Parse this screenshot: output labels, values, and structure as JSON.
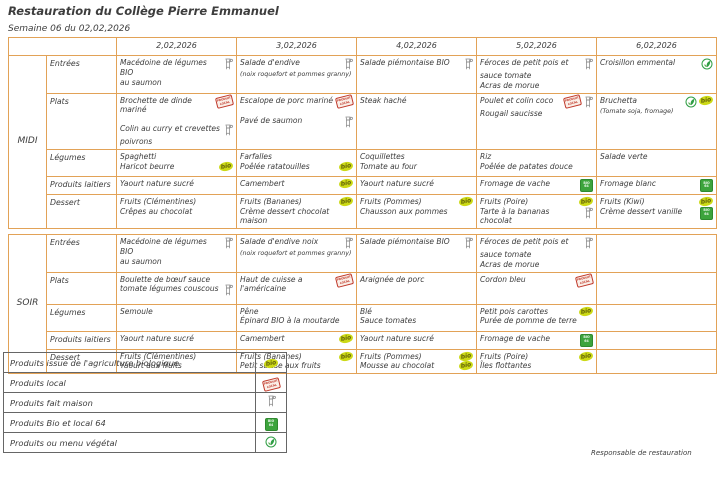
{
  "title": "Restauration du Collège Pierre Emmanuel",
  "subtitle": "Semaine 06 du 02,02,2026",
  "footer": "Responsable de restauration",
  "colors": {
    "table_border": "#e2a257",
    "bio_badge": "#ccd916",
    "local_stamp": "#c0392b",
    "bio_local_64": "#3da43d",
    "vegetal": "#2f9e44"
  },
  "icon_labels": {
    "bio": "bio",
    "local_line1": "PRODUIT",
    "local_line2": "LOCAL",
    "b64_line1": "BIO",
    "b64_line2": "64"
  },
  "columns": [
    "2,02,2026",
    "3,02,2026",
    "4,02,2026",
    "5,02,2026",
    "6,02,2026"
  ],
  "sections": [
    {
      "name": "MIDI",
      "rows": [
        {
          "category": "Entrées",
          "cells": [
            {
              "lines": [
                {
                  "text": "Macédoine de légumes BIO",
                  "icons": [
                    "fait-maison"
                  ]
                },
                {
                  "text": "au saumon"
                }
              ]
            },
            {
              "lines": [
                {
                  "text": "Salade d'endive",
                  "icons": [
                    "fait-maison"
                  ]
                },
                {
                  "text": "(noix roquefort et pommes granny)",
                  "small": true
                }
              ]
            },
            {
              "lines": [
                {
                  "text": "Salade piémontaise BIO",
                  "icons": [
                    "fait-maison"
                  ]
                }
              ]
            },
            {
              "lines": [
                {
                  "text": "Féroces de petit pois et",
                  "icons": [
                    "fait-maison"
                  ]
                },
                {
                  "text": "sauce tomate"
                },
                {
                  "text": "Acras de morue"
                }
              ]
            },
            {
              "lines": [
                {
                  "text": "Croisillon emmental",
                  "icons": [
                    "vegetal"
                  ]
                }
              ]
            }
          ]
        },
        {
          "category": "Plats",
          "cells": [
            {
              "lines": [
                {
                  "text": "Brochette de dinde mariné",
                  "icons": [
                    "local"
                  ]
                },
                {
                  "text": "Colin au curry et crevettes",
                  "icons": [
                    "fait-maison"
                  ],
                  "gap": true
                },
                {
                  "text": "poivrons"
                }
              ]
            },
            {
              "lines": [
                {
                  "text": "Escalope de porc mariné",
                  "icons": [
                    "local"
                  ]
                },
                {
                  "text": "Pavé de saumon",
                  "icons": [
                    "fait-maison"
                  ],
                  "gap": true
                }
              ]
            },
            {
              "lines": [
                {
                  "text": "Steak haché"
                }
              ]
            },
            {
              "lines": [
                {
                  "text": "Poulet et colin coco",
                  "icons": [
                    "local",
                    "fait-maison"
                  ]
                },
                {
                  "text": "Rougail saucisse"
                }
              ]
            },
            {
              "lines": [
                {
                  "text": "Bruchetta",
                  "icons": [
                    "vegetal",
                    "bio"
                  ]
                },
                {
                  "text": "(Tomate soja, fromage)",
                  "small": true
                }
              ]
            }
          ]
        },
        {
          "category": "Légumes",
          "cells": [
            {
              "lines": [
                {
                  "text": "Spaghetti"
                },
                {
                  "text": "Haricot beurre",
                  "icons": [
                    "bio"
                  ]
                }
              ]
            },
            {
              "lines": [
                {
                  "text": "Farfalles"
                },
                {
                  "text": "Poêlée ratatouilles",
                  "icons": [
                    "bio"
                  ]
                }
              ]
            },
            {
              "lines": [
                {
                  "text": "Coquillettes"
                },
                {
                  "text": "Tomate au four"
                }
              ]
            },
            {
              "lines": [
                {
                  "text": "Riz"
                },
                {
                  "text": "Poêlée de patates douce"
                }
              ]
            },
            {
              "lines": [
                {
                  "text": "Salade verte"
                }
              ]
            }
          ]
        },
        {
          "category": "Produits laitiers",
          "cells": [
            {
              "lines": [
                {
                  "text": "Yaourt nature sucré"
                }
              ]
            },
            {
              "lines": [
                {
                  "text": "Camembert",
                  "icons": [
                    "bio"
                  ]
                }
              ]
            },
            {
              "lines": [
                {
                  "text": "Yaourt nature sucré"
                }
              ]
            },
            {
              "lines": [
                {
                  "text": "Fromage de vache",
                  "icons": [
                    "bio-local-64"
                  ]
                }
              ]
            },
            {
              "lines": [
                {
                  "text": "Fromage blanc",
                  "icons": [
                    "bio-local-64"
                  ]
                }
              ]
            }
          ]
        },
        {
          "category": "Dessert",
          "cells": [
            {
              "lines": [
                {
                  "text": "Fruits (Clémentines)"
                },
                {
                  "text": "Crêpes au chocolat"
                }
              ]
            },
            {
              "lines": [
                {
                  "text": "Fruits (Bananes)",
                  "icons": [
                    "bio"
                  ]
                },
                {
                  "text": "Crème dessert chocolat maison"
                }
              ]
            },
            {
              "lines": [
                {
                  "text": "Fruits (Pommes)",
                  "icons": [
                    "bio"
                  ]
                },
                {
                  "text": "Chausson aux pommes"
                }
              ]
            },
            {
              "lines": [
                {
                  "text": "Fruits (Poire)",
                  "icons": [
                    "bio"
                  ]
                },
                {
                  "text": "Tarte à la bananas chocolat",
                  "icons": [
                    "fait-maison"
                  ]
                }
              ]
            },
            {
              "lines": [
                {
                  "text": "Fruits (Kiwi)",
                  "icons": [
                    "bio"
                  ]
                },
                {
                  "text": "Crème dessert vanille",
                  "icons": [
                    "bio-local-64"
                  ]
                }
              ]
            }
          ]
        }
      ]
    },
    {
      "name": "SOIR",
      "rows": [
        {
          "category": "Entrées",
          "cells": [
            {
              "lines": [
                {
                  "text": "Macédoine de légumes BIO",
                  "icons": [
                    "fait-maison"
                  ]
                },
                {
                  "text": "au saumon"
                }
              ]
            },
            {
              "lines": [
                {
                  "text": "Salade d'endive noix",
                  "icons": [
                    "fait-maison"
                  ]
                },
                {
                  "text": "(noix roquefort et pommes granny)",
                  "small": true
                }
              ]
            },
            {
              "lines": [
                {
                  "text": "Salade piémontaise BIO",
                  "icons": [
                    "fait-maison"
                  ]
                }
              ]
            },
            {
              "lines": [
                {
                  "text": "Féroces de petit pois et",
                  "icons": [
                    "fait-maison"
                  ]
                },
                {
                  "text": "sauce tomate"
                },
                {
                  "text": "Acras de morue"
                }
              ]
            },
            {
              "lines": []
            }
          ]
        },
        {
          "category": "Plats",
          "cells": [
            {
              "lines": [
                {
                  "text": "Boulette de bœuf sauce"
                },
                {
                  "text": "tomate légumes couscous",
                  "icons": [
                    "fait-maison"
                  ]
                }
              ]
            },
            {
              "lines": [
                {
                  "text": "Haut de cuisse a l'américaine",
                  "icons": [
                    "local"
                  ]
                }
              ]
            },
            {
              "lines": [
                {
                  "text": "Araignée de porc"
                }
              ]
            },
            {
              "lines": [
                {
                  "text": "Cordon bleu",
                  "icons": [
                    "local"
                  ]
                }
              ]
            },
            {
              "lines": []
            }
          ]
        },
        {
          "category": "Légumes",
          "cells": [
            {
              "lines": [
                {
                  "text": "Semoule"
                }
              ]
            },
            {
              "lines": [
                {
                  "text": "Pêne"
                },
                {
                  "text": "Épinard BIO à la moutarde"
                }
              ]
            },
            {
              "lines": [
                {
                  "text": "Blé"
                },
                {
                  "text": "Sauce tomates"
                }
              ]
            },
            {
              "lines": [
                {
                  "text": "Petit pois carottes",
                  "icons": [
                    "bio"
                  ]
                },
                {
                  "text": "Purée de pomme de terre"
                }
              ]
            },
            {
              "lines": []
            }
          ]
        },
        {
          "category": "Produits laitiers",
          "cells": [
            {
              "lines": [
                {
                  "text": "Yaourt nature sucré"
                }
              ]
            },
            {
              "lines": [
                {
                  "text": "Camembert",
                  "icons": [
                    "bio"
                  ]
                }
              ]
            },
            {
              "lines": [
                {
                  "text": "Yaourt nature sucré"
                }
              ]
            },
            {
              "lines": [
                {
                  "text": "Fromage de vache",
                  "icons": [
                    "bio-local-64"
                  ]
                }
              ]
            },
            {
              "lines": []
            }
          ]
        },
        {
          "category": "Dessert",
          "cells": [
            {
              "lines": [
                {
                  "text": "Fruits (Clémentines)"
                },
                {
                  "text": "Yaourt aux fruits"
                }
              ]
            },
            {
              "lines": [
                {
                  "text": "Fruits (Bananes)",
                  "icons": [
                    "bio"
                  ]
                },
                {
                  "text": "Petit suisse aux fruits"
                }
              ]
            },
            {
              "lines": [
                {
                  "text": "Fruits (Pommes)",
                  "icons": [
                    "bio"
                  ]
                },
                {
                  "text": "Mousse au chocolat",
                  "icons": [
                    "bio"
                  ]
                }
              ]
            },
            {
              "lines": [
                {
                  "text": "Fruits (Poire)",
                  "icons": [
                    "bio"
                  ]
                },
                {
                  "text": "Îles flottantes"
                }
              ]
            },
            {
              "lines": []
            }
          ]
        }
      ]
    }
  ],
  "legend": [
    {
      "label": "Produits issue de l'agriculture biologique",
      "icon": "bio"
    },
    {
      "label": "Produits local",
      "icon": "local"
    },
    {
      "label": "Produits fait maison",
      "icon": "fait-maison"
    },
    {
      "label": "Produits Bio et local 64",
      "icon": "bio-local-64"
    },
    {
      "label": "Produits ou menu végétal",
      "icon": "vegetal"
    }
  ]
}
